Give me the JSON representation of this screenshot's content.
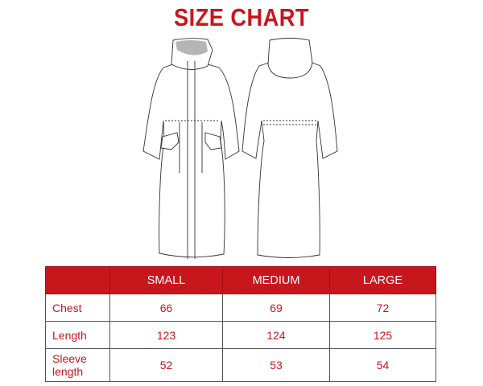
{
  "title": "SIZE CHART",
  "colors": {
    "accent": "#c8161d",
    "hood_lining": "#b5b5b5"
  },
  "images": [
    "coat-front-illustration",
    "coat-back-illustration"
  ],
  "table": {
    "headers": [
      "",
      "SMALL",
      "MEDIUM",
      "LARGE"
    ],
    "rows": [
      {
        "label": "Chest",
        "values": [
          "66",
          "69",
          "72"
        ]
      },
      {
        "label": "Length",
        "values": [
          "123",
          "124",
          "125"
        ]
      },
      {
        "label": "Sleeve length",
        "values": [
          "52",
          "53",
          "54"
        ]
      }
    ]
  }
}
